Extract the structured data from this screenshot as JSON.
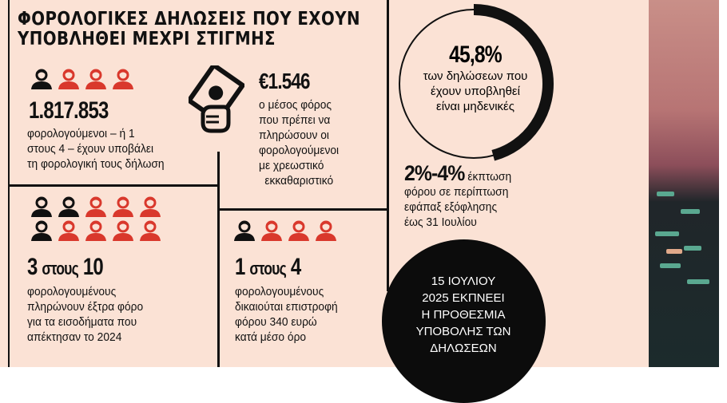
{
  "title": {
    "line1": "ΦΟΡΟΛΟΓΙΚΕΣ ΔΗΛΩΣΕΙΣ ΠΟΥ ΕΧΟΥΝ",
    "line2": "ΥΠΟΒΛΗΘΕΙ ΜΕΧΡΙ ΣΤΙΓΜΗΣ"
  },
  "colors": {
    "background": "#fbe2d5",
    "accent": "#d9382c",
    "dark": "#111111"
  },
  "block1": {
    "icons": {
      "black": 1,
      "red": 3
    },
    "value": "1.817.853",
    "lines": [
      "φορολογούμενοι – ή 1",
      "στους 4 – έχουν υποβάλει",
      "τη φορολογική τους δήλωση"
    ]
  },
  "block2": {
    "icon": "money-hand-icon",
    "value": "€1.546",
    "lines": [
      "ο μέσος φόρος",
      "που πρέπει να",
      "πληρώσουν οι",
      "φορολογούμενοι",
      "με χρεωστικό",
      "εκκαθαριστικό"
    ]
  },
  "block3": {
    "icons": {
      "black": 3,
      "red": 7
    },
    "value_a": "3",
    "mid": "στους",
    "value_b": "10",
    "lines": [
      "φορολογουμένους",
      "πληρώνουν έξτρα φόρο",
      "για τα εισοδήματα που",
      "απέκτησαν το 2024"
    ]
  },
  "block4": {
    "icons": {
      "black": 1,
      "red": 3
    },
    "value_a": "1",
    "mid": "στους",
    "value_b": "4",
    "lines": [
      "φορολογουμένους",
      "δικαιούται επιστροφή",
      "φόρου 340 ευρώ",
      "κατά μέσο όρο"
    ]
  },
  "ring": {
    "percent": 45.8,
    "value": "45,8%",
    "lines": [
      "των δηλώσεων που",
      "έχουν υποβληθεί",
      "είναι μηδενικές"
    ]
  },
  "discount": {
    "value": "2%-4%",
    "lines": [
      "έκπτωση",
      "φόρου σε περίπτωση",
      "εφάπαξ εξόφλησης",
      "έως 31 Ιουλίου"
    ]
  },
  "deadline": {
    "lines": [
      "15 ΙΟΥΛΙΟΥ",
      "2025 ΕΚΠΝΕΕΙ",
      "Η ΠΡΟΘΕΣΜΙΑ",
      "ΥΠΟΒΟΛΗΣ ΤΩΝ",
      "ΔΗΛΩΣΕΩΝ"
    ]
  }
}
